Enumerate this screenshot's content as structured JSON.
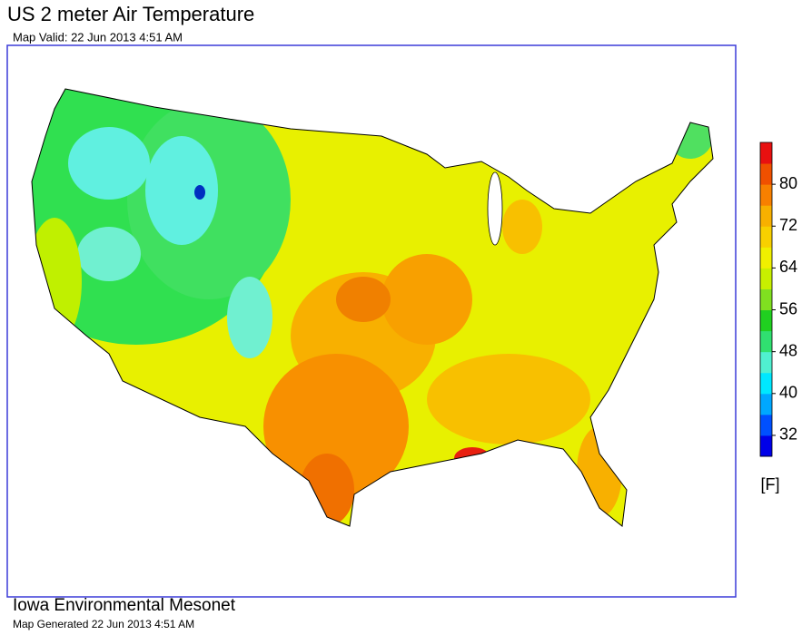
{
  "header": {
    "title": "US 2 meter Air Temperature",
    "subtitle": "Map Valid: 22 Jun 2013 4:51 AM"
  },
  "legend": {
    "ticks": [
      32,
      40,
      48,
      56,
      64,
      72,
      80
    ],
    "range": [
      28,
      88
    ],
    "unit": "[F]",
    "colors": [
      "#0000e8",
      "#0050ff",
      "#00a8ff",
      "#00e8ff",
      "#50f0d0",
      "#30e070",
      "#20d020",
      "#80e020",
      "#c8f000",
      "#f0f000",
      "#f8d000",
      "#f8b000",
      "#f88000",
      "#f05000",
      "#e81010"
    ]
  },
  "footer": {
    "org": "Iowa Environmental Mesonet",
    "generated": "Map Generated 22 Jun 2013 4:51 AM"
  }
}
